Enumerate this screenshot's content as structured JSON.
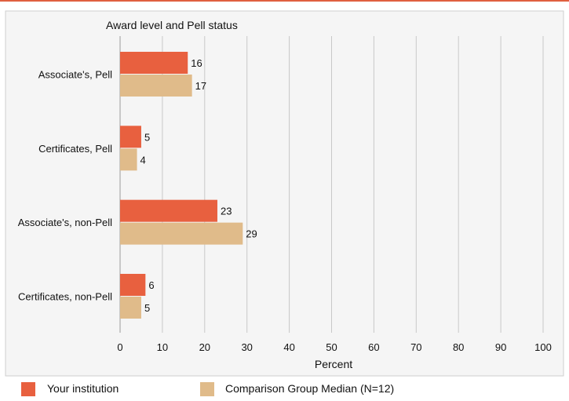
{
  "colors": {
    "top_rule": "#e0603f",
    "panel_bg": "#f5f5f5",
    "panel_border": "#cfcfcf",
    "grid": "#c8c8c8",
    "series_1": "#e8603f",
    "series_2": "#e0bb8a"
  },
  "chart_data": {
    "type": "bar",
    "orientation": "horizontal",
    "title": "Award level and Pell status",
    "xlabel": "Percent",
    "ylabel": "",
    "xlim": [
      0,
      100
    ],
    "x_ticks": [
      0,
      10,
      20,
      30,
      40,
      50,
      60,
      70,
      80,
      90,
      100
    ],
    "categories": [
      "Associate's, Pell",
      "Certificates, Pell",
      "Associate's, non-Pell",
      "Certificates, non-Pell"
    ],
    "series": [
      {
        "name": "Your institution",
        "values": [
          16,
          5,
          23,
          6
        ]
      },
      {
        "name": "Comparison Group Median (N=12)",
        "values": [
          17,
          4,
          29,
          5
        ]
      }
    ],
    "grid": true,
    "legend": "bottom"
  }
}
